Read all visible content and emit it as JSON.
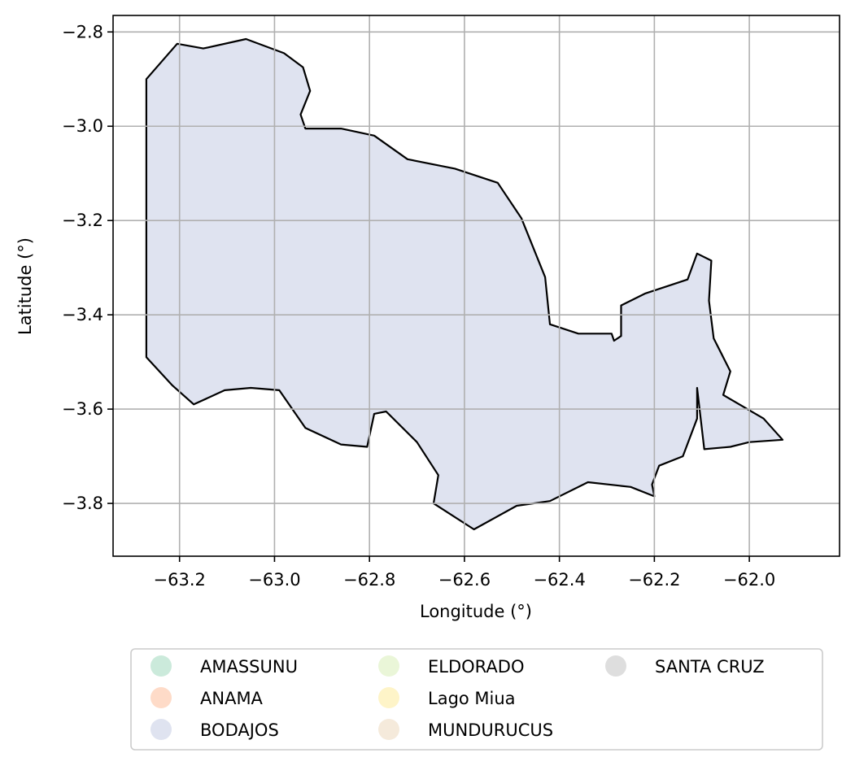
{
  "map": {
    "xlabel": "Longitude (°)",
    "ylabel": "Latitude (°)",
    "xlim": [
      -63.34,
      -61.81
    ],
    "ylim": [
      -3.912,
      -2.765
    ],
    "x_ticks": [
      {
        "value": -63.2,
        "label": "−63.2"
      },
      {
        "value": -63.0,
        "label": "−63.0"
      },
      {
        "value": -62.8,
        "label": "−62.8"
      },
      {
        "value": -62.6,
        "label": "−62.6"
      },
      {
        "value": -62.4,
        "label": "−62.4"
      },
      {
        "value": -62.2,
        "label": "−62.2"
      },
      {
        "value": -62.0,
        "label": "−62.0"
      }
    ],
    "y_ticks": [
      {
        "value": -2.8,
        "label": "−2.8"
      },
      {
        "value": -3.0,
        "label": "−3.0"
      },
      {
        "value": -3.2,
        "label": "−3.2"
      },
      {
        "value": -3.4,
        "label": "−3.4"
      },
      {
        "value": -3.6,
        "label": "−3.6"
      },
      {
        "value": -3.8,
        "label": "−3.8"
      }
    ],
    "grid": true,
    "region": {
      "name": "BODAJOS",
      "fill_color": "#dfe3f0",
      "outline_color": "#000000",
      "outline": [
        [
          -63.27,
          -2.9
        ],
        [
          -63.205,
          -2.825
        ],
        [
          -63.15,
          -2.835
        ],
        [
          -63.06,
          -2.815
        ],
        [
          -62.98,
          -2.845
        ],
        [
          -62.94,
          -2.875
        ],
        [
          -62.925,
          -2.925
        ],
        [
          -62.945,
          -2.975
        ],
        [
          -62.935,
          -3.005
        ],
        [
          -62.86,
          -3.005
        ],
        [
          -62.79,
          -3.02
        ],
        [
          -62.72,
          -3.07
        ],
        [
          -62.62,
          -3.09
        ],
        [
          -62.53,
          -3.12
        ],
        [
          -62.48,
          -3.195
        ],
        [
          -62.43,
          -3.32
        ],
        [
          -62.42,
          -3.42
        ],
        [
          -62.36,
          -3.44
        ],
        [
          -62.29,
          -3.44
        ],
        [
          -62.285,
          -3.455
        ],
        [
          -62.27,
          -3.445
        ],
        [
          -62.27,
          -3.38
        ],
        [
          -62.22,
          -3.355
        ],
        [
          -62.13,
          -3.325
        ],
        [
          -62.11,
          -3.27
        ],
        [
          -62.08,
          -3.285
        ],
        [
          -62.085,
          -3.37
        ],
        [
          -62.075,
          -3.45
        ],
        [
          -62.04,
          -3.52
        ],
        [
          -62.055,
          -3.57
        ],
        [
          -61.97,
          -3.62
        ],
        [
          -61.93,
          -3.665
        ],
        [
          -62.0,
          -3.67
        ],
        [
          -62.04,
          -3.68
        ],
        [
          -62.095,
          -3.685
        ],
        [
          -62.11,
          -3.555
        ],
        [
          -62.11,
          -3.62
        ],
        [
          -62.14,
          -3.7
        ],
        [
          -62.19,
          -3.72
        ],
        [
          -62.205,
          -3.76
        ],
        [
          -62.2,
          -3.785
        ],
        [
          -62.25,
          -3.765
        ],
        [
          -62.34,
          -3.755
        ],
        [
          -62.42,
          -3.795
        ],
        [
          -62.49,
          -3.805
        ],
        [
          -62.58,
          -3.855
        ],
        [
          -62.665,
          -3.8
        ],
        [
          -62.655,
          -3.74
        ],
        [
          -62.7,
          -3.67
        ],
        [
          -62.765,
          -3.605
        ],
        [
          -62.79,
          -3.61
        ],
        [
          -62.805,
          -3.68
        ],
        [
          -62.86,
          -3.675
        ],
        [
          -62.935,
          -3.64
        ],
        [
          -62.99,
          -3.56
        ],
        [
          -63.05,
          -3.555
        ],
        [
          -63.105,
          -3.56
        ],
        [
          -63.17,
          -3.59
        ],
        [
          -63.215,
          -3.55
        ],
        [
          -63.27,
          -3.49
        ]
      ]
    },
    "legend": {
      "placement": "below",
      "columns": 3,
      "entries": [
        {
          "label": "AMASSUNU",
          "color": "#cbeadb"
        },
        {
          "label": "ANAMA",
          "color": "#fedbc8"
        },
        {
          "label": "BODAJOS",
          "color": "#dfe3f0"
        },
        {
          "label": "ELDORADO",
          "color": "#eaf6d8"
        },
        {
          "label": "Lago Miua",
          "color": "#fef4c8"
        },
        {
          "label": "MUNDURUCUS",
          "color": "#f5eadb"
        },
        {
          "label": "SANTA CRUZ",
          "color": "#dedede"
        }
      ]
    }
  }
}
